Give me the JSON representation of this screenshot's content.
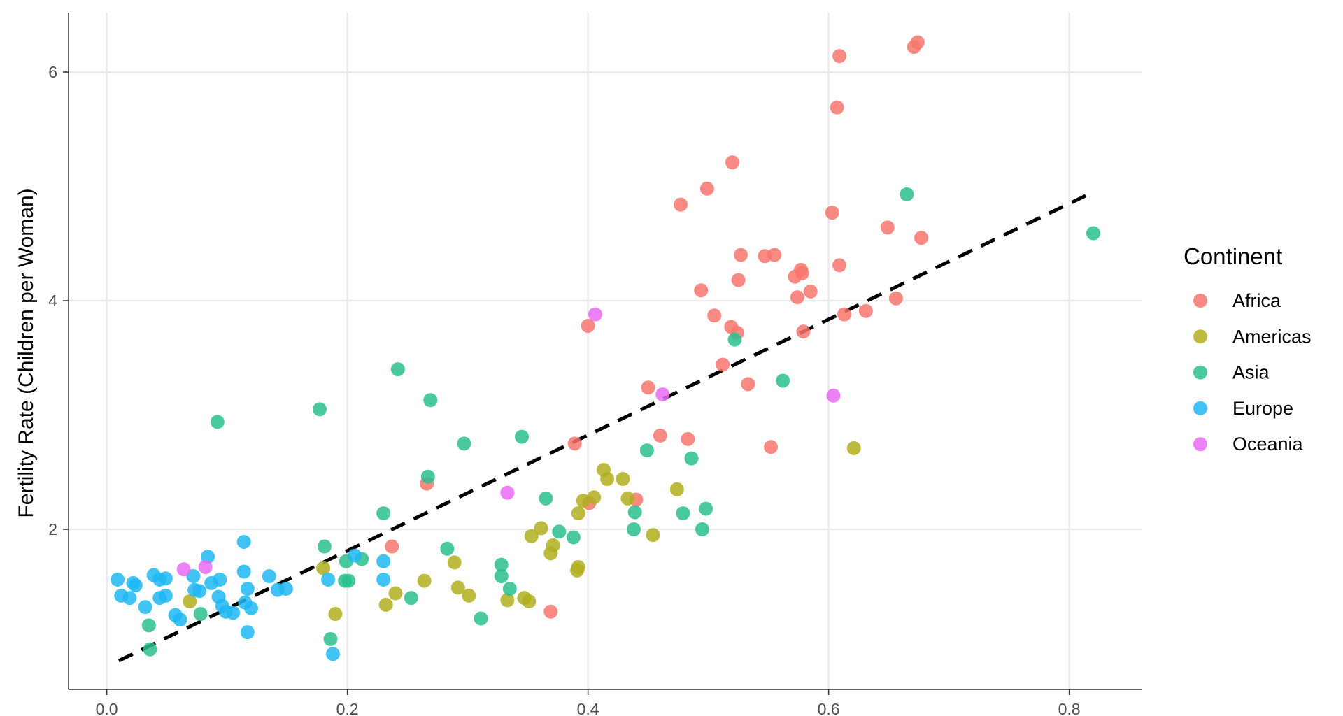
{
  "chart_data": {
    "type": "scatter",
    "title": "",
    "xlabel": "",
    "ylabel": "Fertility Rate (Children per Woman)",
    "xlim": [
      -0.016,
      0.86
    ],
    "ylim": [
      0.6,
      6.5
    ],
    "x_ticks": [
      0.0,
      0.2,
      0.4,
      0.6,
      0.8
    ],
    "x_tick_labels": [
      "0.0",
      "0.2",
      "0.4",
      "0.6",
      "0.8"
    ],
    "y_ticks": [
      2,
      4,
      6
    ],
    "y_tick_labels": [
      "2",
      "4",
      "6"
    ],
    "grid": true,
    "legend": {
      "title": "Continent",
      "placement": "right"
    },
    "trend_line": {
      "style": "dashed",
      "color": "#000000",
      "x": [
        0.01,
        0.82
      ],
      "y": [
        0.85,
        4.95
      ]
    },
    "series": [
      {
        "name": "Africa",
        "color": "#F8766D",
        "points": [
          [
            0.674,
            6.26
          ],
          [
            0.671,
            6.22
          ],
          [
            0.609,
            6.14
          ],
          [
            0.607,
            5.69
          ],
          [
            0.52,
            5.21
          ],
          [
            0.499,
            4.98
          ],
          [
            0.477,
            4.84
          ],
          [
            0.603,
            4.77
          ],
          [
            0.649,
            4.64
          ],
          [
            0.677,
            4.55
          ],
          [
            0.527,
            4.4
          ],
          [
            0.547,
            4.39
          ],
          [
            0.555,
            4.4
          ],
          [
            0.577,
            4.27
          ],
          [
            0.609,
            4.31
          ],
          [
            0.572,
            4.21
          ],
          [
            0.578,
            4.24
          ],
          [
            0.525,
            4.18
          ],
          [
            0.494,
            4.09
          ],
          [
            0.574,
            4.03
          ],
          [
            0.585,
            4.08
          ],
          [
            0.656,
            4.02
          ],
          [
            0.505,
            3.87
          ],
          [
            0.519,
            3.77
          ],
          [
            0.524,
            3.72
          ],
          [
            0.613,
            3.88
          ],
          [
            0.631,
            3.91
          ],
          [
            0.579,
            3.73
          ],
          [
            0.4,
            3.78
          ],
          [
            0.512,
            3.44
          ],
          [
            0.533,
            3.27
          ],
          [
            0.45,
            3.24
          ],
          [
            0.46,
            2.82
          ],
          [
            0.483,
            2.79
          ],
          [
            0.552,
            2.72
          ],
          [
            0.389,
            2.75
          ],
          [
            0.266,
            2.4
          ],
          [
            0.401,
            2.23
          ],
          [
            0.44,
            2.26
          ],
          [
            0.237,
            1.85
          ],
          [
            0.369,
            1.28
          ]
        ]
      },
      {
        "name": "Americas",
        "color": "#B2AE1F",
        "points": [
          [
            0.621,
            2.71
          ],
          [
            0.413,
            2.52
          ],
          [
            0.416,
            2.44
          ],
          [
            0.429,
            2.44
          ],
          [
            0.474,
            2.35
          ],
          [
            0.405,
            2.28
          ],
          [
            0.396,
            2.25
          ],
          [
            0.392,
            2.14
          ],
          [
            0.433,
            2.27
          ],
          [
            0.361,
            2.01
          ],
          [
            0.353,
            1.94
          ],
          [
            0.371,
            1.86
          ],
          [
            0.369,
            1.79
          ],
          [
            0.454,
            1.95
          ],
          [
            0.392,
            1.67
          ],
          [
            0.391,
            1.64
          ],
          [
            0.18,
            1.66
          ],
          [
            0.264,
            1.55
          ],
          [
            0.289,
            1.71
          ],
          [
            0.292,
            1.49
          ],
          [
            0.301,
            1.42
          ],
          [
            0.24,
            1.44
          ],
          [
            0.232,
            1.34
          ],
          [
            0.19,
            1.26
          ],
          [
            0.347,
            1.4
          ],
          [
            0.351,
            1.37
          ],
          [
            0.333,
            1.38
          ],
          [
            0.069,
            1.37
          ]
        ]
      },
      {
        "name": "Asia",
        "color": "#2BC08D",
        "points": [
          [
            0.665,
            4.93
          ],
          [
            0.82,
            4.59
          ],
          [
            0.522,
            3.66
          ],
          [
            0.562,
            3.3
          ],
          [
            0.242,
            3.4
          ],
          [
            0.269,
            3.13
          ],
          [
            0.177,
            3.05
          ],
          [
            0.092,
            2.94
          ],
          [
            0.297,
            2.75
          ],
          [
            0.345,
            2.81
          ],
          [
            0.449,
            2.69
          ],
          [
            0.486,
            2.62
          ],
          [
            0.267,
            2.46
          ],
          [
            0.365,
            2.27
          ],
          [
            0.23,
            2.14
          ],
          [
            0.439,
            2.15
          ],
          [
            0.479,
            2.14
          ],
          [
            0.498,
            2.18
          ],
          [
            0.376,
            1.98
          ],
          [
            0.388,
            1.93
          ],
          [
            0.438,
            2.0
          ],
          [
            0.495,
            2.0
          ],
          [
            0.181,
            1.85
          ],
          [
            0.283,
            1.83
          ],
          [
            0.199,
            1.72
          ],
          [
            0.212,
            1.74
          ],
          [
            0.201,
            1.55
          ],
          [
            0.328,
            1.69
          ],
          [
            0.328,
            1.59
          ],
          [
            0.335,
            1.48
          ],
          [
            0.253,
            1.4
          ],
          [
            0.311,
            1.22
          ],
          [
            0.078,
            1.26
          ],
          [
            0.035,
            1.16
          ],
          [
            0.186,
            1.04
          ],
          [
            0.036,
            0.95
          ],
          [
            0.198,
            1.55
          ]
        ]
      },
      {
        "name": "Europe",
        "color": "#1FB8F2",
        "points": [
          [
            0.114,
            1.89
          ],
          [
            0.084,
            1.76
          ],
          [
            0.206,
            1.77
          ],
          [
            0.23,
            1.72
          ],
          [
            0.009,
            1.56
          ],
          [
            0.022,
            1.53
          ],
          [
            0.024,
            1.51
          ],
          [
            0.039,
            1.6
          ],
          [
            0.049,
            1.57
          ],
          [
            0.044,
            1.56
          ],
          [
            0.072,
            1.59
          ],
          [
            0.094,
            1.56
          ],
          [
            0.114,
            1.63
          ],
          [
            0.135,
            1.59
          ],
          [
            0.087,
            1.53
          ],
          [
            0.012,
            1.42
          ],
          [
            0.019,
            1.4
          ],
          [
            0.044,
            1.4
          ],
          [
            0.049,
            1.42
          ],
          [
            0.073,
            1.47
          ],
          [
            0.077,
            1.46
          ],
          [
            0.093,
            1.41
          ],
          [
            0.117,
            1.48
          ],
          [
            0.142,
            1.47
          ],
          [
            0.149,
            1.48
          ],
          [
            0.184,
            1.56
          ],
          [
            0.23,
            1.56
          ],
          [
            0.032,
            1.32
          ],
          [
            0.057,
            1.25
          ],
          [
            0.061,
            1.21
          ],
          [
            0.096,
            1.33
          ],
          [
            0.099,
            1.28
          ],
          [
            0.105,
            1.27
          ],
          [
            0.115,
            1.36
          ],
          [
            0.12,
            1.31
          ],
          [
            0.117,
            1.1
          ],
          [
            0.188,
            0.91
          ]
        ]
      },
      {
        "name": "Oceania",
        "color": "#E76BF3",
        "points": [
          [
            0.064,
            1.65
          ],
          [
            0.082,
            1.67
          ],
          [
            0.406,
            3.88
          ],
          [
            0.462,
            3.18
          ],
          [
            0.604,
            3.17
          ],
          [
            0.333,
            2.32
          ]
        ]
      }
    ]
  }
}
